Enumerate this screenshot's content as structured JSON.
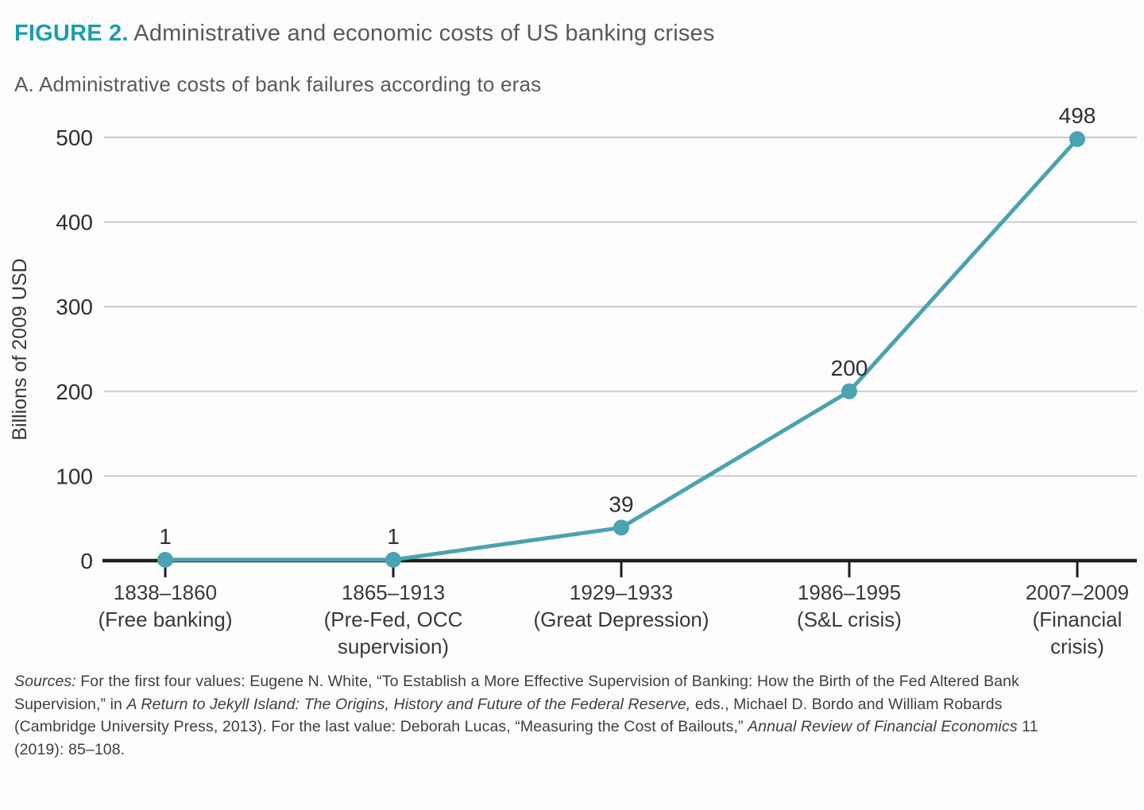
{
  "figure": {
    "label": "FIGURE 2.",
    "title": "Administrative and economic costs of US banking crises",
    "panel_title": "A. Administrative costs of bank failures according to eras"
  },
  "chart_data": {
    "type": "line",
    "title": "A. Administrative costs of bank failures according to eras",
    "xlabel": "",
    "ylabel": "Billions of 2009 USD",
    "ylim": [
      0,
      500
    ],
    "yticks": [
      0,
      100,
      200,
      300,
      400,
      500
    ],
    "grid": "horizontal",
    "legend": "none",
    "categories": [
      [
        "1838–1860",
        "(Free banking)"
      ],
      [
        "1865–1913",
        "(Pre-Fed, OCC",
        "supervision)"
      ],
      [
        "1929–1933",
        "(Great Depression)"
      ],
      [
        "1986–1995",
        "(S&L crisis)"
      ],
      [
        "2007–2009",
        "(Financial",
        "crisis)"
      ]
    ],
    "values": [
      1,
      1,
      39,
      200,
      498
    ],
    "data_labels": [
      "1",
      "1",
      "39",
      "200",
      "498"
    ],
    "marker": "circle"
  },
  "sources": {
    "lines": [
      [
        {
          "t": "Sources:",
          "i": true
        },
        {
          "t": " For the first four values: Eugene N. White, “To Establish a More Effective Supervision of Banking: How the Birth of the Fed Altered Bank",
          "i": false
        }
      ],
      [
        {
          "t": "Supervision,” in ",
          "i": false
        },
        {
          "t": "A Return to Jekyll Island: The Origins, History and Future of the Federal Reserve,",
          "i": true
        },
        {
          "t": " eds., Michael D. Bordo and William Robards",
          "i": false
        }
      ],
      [
        {
          "t": "(Cambridge University Press, 2013). For the last value: Deborah Lucas, “Measuring the Cost of Bailouts,” ",
          "i": false
        },
        {
          "t": "Annual Review of Financial Economics",
          "i": true
        },
        {
          "t": " 11",
          "i": false
        }
      ],
      [
        {
          "t": "(2019): 85–108.",
          "i": false
        }
      ]
    ]
  },
  "colors": {
    "accent": "#1b9dad",
    "line": "#4ba2b1",
    "grid": "#cacaca",
    "axis": "#1f1f1f",
    "tick_text": "#2f2f33",
    "label_text": "#39393d",
    "heading_text": "#58595b",
    "source_text": "#3e3e40"
  }
}
